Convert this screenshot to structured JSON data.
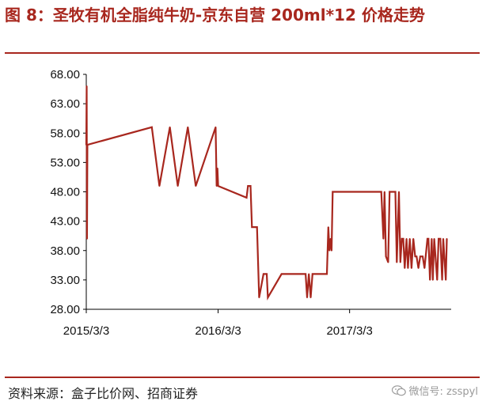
{
  "figure": {
    "title": "图 8：圣牧有机全脂纯牛奶-京东自营 200ml*12 价格走势",
    "source": "资料来源：盒子比价网、招商证券",
    "watermark": "微信号: zsspyl"
  },
  "chart_data": {
    "type": "line",
    "title": "",
    "xlabel": "",
    "ylabel": "",
    "ylim": [
      28,
      68
    ],
    "yticks": [
      "68.00",
      "63.00",
      "58.00",
      "53.00",
      "48.00",
      "43.00",
      "38.00",
      "33.00",
      "28.00"
    ],
    "xticks": [
      "2015/3/3",
      "2016/3/3",
      "2017/3/3"
    ],
    "xlim": [
      "2015-03-03",
      "2017-12-10"
    ],
    "color": "#a8271e",
    "series": [
      {
        "name": "",
        "x": [
          "2015-03-03",
          "2015-03-04",
          "2015-03-05",
          "2015-03-06",
          "2015-09-01",
          "2015-09-22",
          "2015-10-21",
          "2015-11-12",
          "2015-12-10",
          "2016-01-01",
          "2016-02-25",
          "2016-02-28",
          "2016-03-01",
          "2016-03-03",
          "2016-05-21",
          "2016-05-25",
          "2016-06-01",
          "2016-06-05",
          "2016-06-19",
          "2016-06-25",
          "2016-07-07",
          "2016-07-12",
          "2016-07-16",
          "2016-07-19",
          "2016-08-26",
          "2016-09-01",
          "2016-09-04",
          "2016-11-01",
          "2016-11-05",
          "2016-11-10",
          "2016-11-15",
          "2016-11-20",
          "2016-11-25",
          "2016-12-30",
          "2017-01-03",
          "2017-01-06",
          "2017-01-09",
          "2017-01-12",
          "2017-01-15",
          "2017-01-25",
          "2017-05-30",
          "2017-06-05",
          "2017-06-08",
          "2017-06-12",
          "2017-06-18",
          "2017-06-22",
          "2017-07-08",
          "2017-07-12",
          "2017-07-18",
          "2017-07-22",
          "2017-07-26",
          "2017-07-30",
          "2017-08-03",
          "2017-08-08",
          "2017-08-12",
          "2017-08-17",
          "2017-08-22",
          "2017-08-27",
          "2017-09-01",
          "2017-09-05",
          "2017-09-10",
          "2017-09-15",
          "2017-09-22",
          "2017-09-27",
          "2017-10-05",
          "2017-10-08",
          "2017-10-12",
          "2017-10-17",
          "2017-10-20",
          "2017-10-24",
          "2017-11-01",
          "2017-11-05",
          "2017-11-10",
          "2017-11-15",
          "2017-11-18",
          "2017-11-25",
          "2017-11-28"
        ],
        "y": [
          56,
          66,
          40,
          56,
          59,
          49,
          59,
          49,
          59,
          49,
          59,
          49,
          52,
          49,
          47,
          49,
          49,
          42,
          42,
          30,
          34,
          34,
          34,
          30,
          34,
          34,
          34,
          34,
          30,
          34,
          30,
          34,
          34,
          34,
          42,
          38,
          40,
          38,
          48,
          48,
          48,
          40,
          48,
          37,
          36,
          48,
          48,
          36,
          48,
          36,
          40,
          40,
          35,
          40,
          35,
          40,
          35,
          40,
          37,
          37,
          35,
          37,
          37,
          35,
          40,
          40,
          33,
          40,
          33,
          40,
          33,
          40,
          40,
          33,
          40,
          33,
          40
        ]
      }
    ]
  }
}
